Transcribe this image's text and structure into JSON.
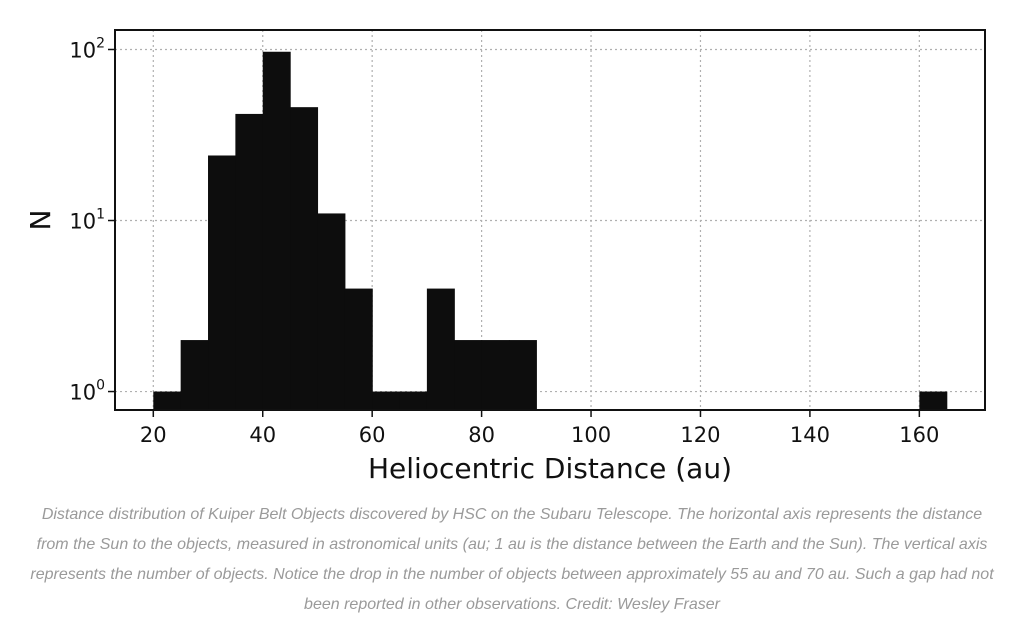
{
  "chart_data": {
    "type": "bar",
    "subtype": "histogram",
    "xlabel": "Heliocentric Distance (au)",
    "ylabel": "N",
    "y_scale": "log",
    "xlim": [
      13,
      172
    ],
    "ylim": [
      0.78,
      130
    ],
    "grid": true,
    "bar_color": "#0d0d0d",
    "x_ticks": [
      20,
      40,
      60,
      80,
      100,
      120,
      140,
      160
    ],
    "y_ticks": [
      {
        "value": 1,
        "base": "10",
        "exp": "0"
      },
      {
        "value": 10,
        "base": "10",
        "exp": "1"
      },
      {
        "value": 100,
        "base": "10",
        "exp": "2"
      }
    ],
    "bins": [
      {
        "x0": 20,
        "x1": 25,
        "count": 1
      },
      {
        "x0": 25,
        "x1": 30,
        "count": 2
      },
      {
        "x0": 30,
        "x1": 35,
        "count": 24
      },
      {
        "x0": 35,
        "x1": 40,
        "count": 42
      },
      {
        "x0": 40,
        "x1": 45,
        "count": 97
      },
      {
        "x0": 45,
        "x1": 50,
        "count": 46
      },
      {
        "x0": 50,
        "x1": 55,
        "count": 11
      },
      {
        "x0": 55,
        "x1": 60,
        "count": 4
      },
      {
        "x0": 60,
        "x1": 65,
        "count": 1
      },
      {
        "x0": 65,
        "x1": 70,
        "count": 1
      },
      {
        "x0": 70,
        "x1": 75,
        "count": 4
      },
      {
        "x0": 75,
        "x1": 80,
        "count": 2
      },
      {
        "x0": 80,
        "x1": 85,
        "count": 2
      },
      {
        "x0": 85,
        "x1": 90,
        "count": 2
      },
      {
        "x0": 160,
        "x1": 165,
        "count": 1
      }
    ]
  },
  "caption": "Distance distribution of Kuiper Belt Objects discovered by HSC on the Subaru Telescope. The horizontal axis represents the distance from the Sun to the objects, measured in astronomical units (au; 1 au is the distance between the Earth and the Sun). The vertical axis represents the number of objects. Notice the drop in the number of objects between approximately 55 au and 70 au. Such a gap had not been reported in other observations. Credit: Wesley Fraser"
}
